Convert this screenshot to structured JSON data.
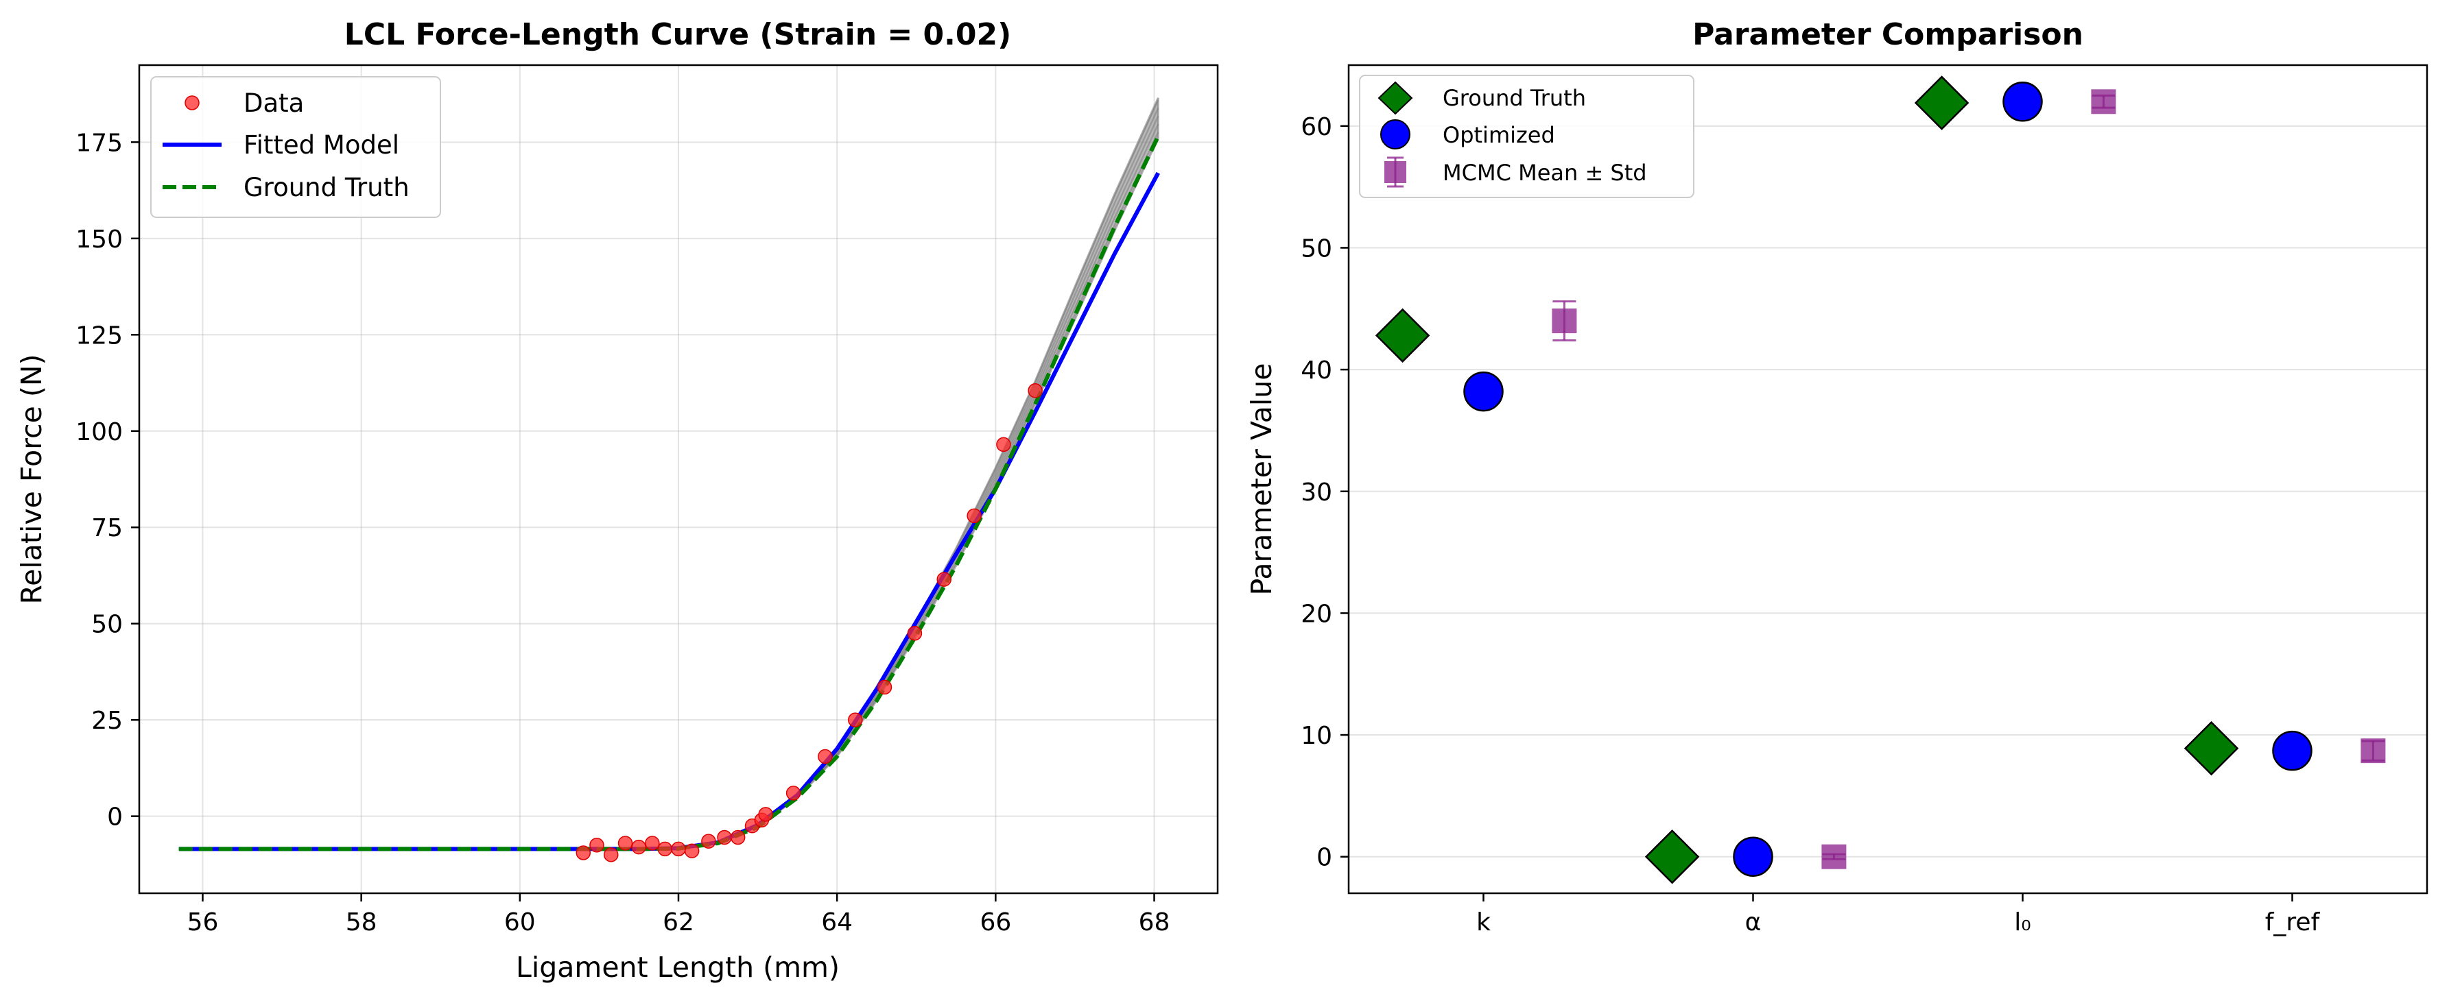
{
  "chart_data": [
    {
      "type": "line",
      "title": "LCL Force-Length Curve (Strain = 0.02)",
      "xlabel": "Ligament Length (mm)",
      "ylabel": "Relative Force (N)",
      "xlim": [
        55.2,
        68.8
      ],
      "ylim": [
        -20,
        195
      ],
      "xticks": [
        56,
        58,
        60,
        62,
        64,
        66,
        68
      ],
      "yticks": [
        0,
        25,
        50,
        75,
        100,
        125,
        150,
        175
      ],
      "grid": true,
      "legend_position": "upper-left",
      "legend": [
        "Data",
        "Fitted Model",
        "Ground Truth"
      ],
      "colors": {
        "data": "#ff2a2a",
        "fitted": "#0000ff",
        "ground_truth": "#008000",
        "mcmc": "#808080"
      },
      "series": [
        {
          "name": "Data",
          "kind": "scatter",
          "x": [
            60.8,
            60.97,
            61.15,
            61.33,
            61.5,
            61.67,
            61.83,
            62.0,
            62.17,
            62.38,
            62.58,
            62.75,
            62.93,
            63.05,
            63.1,
            63.45,
            63.85,
            64.23,
            64.6,
            64.98,
            65.35,
            65.73,
            66.1,
            66.5
          ],
          "y": [
            -9.5,
            -7.5,
            -10,
            -7,
            -8,
            -7,
            -8.5,
            -8.5,
            -9,
            -6.5,
            -5.5,
            -5.5,
            -2.5,
            -1,
            0.5,
            6,
            15.5,
            25,
            33.5,
            47.5,
            61.5,
            78,
            96.5,
            110.5
          ]
        },
        {
          "name": "Fitted Model",
          "kind": "line",
          "x": [
            55.7,
            61.5,
            62.0,
            62.5,
            63.0,
            63.5,
            64.0,
            64.5,
            65.0,
            65.5,
            66.0,
            66.5,
            67.0,
            67.5,
            68.05
          ],
          "y": [
            -8.5,
            -8.5,
            -8.3,
            -6.8,
            -2.3,
            5.5,
            17.5,
            33.0,
            50.5,
            68.0,
            85.0,
            105.0,
            125.5,
            146.0,
            167.0
          ]
        },
        {
          "name": "Ground Truth",
          "kind": "line",
          "x": [
            55.7,
            61.5,
            62.0,
            62.5,
            63.0,
            63.5,
            64.0,
            64.5,
            65.0,
            65.5,
            66.0,
            66.5,
            67.0,
            67.5,
            68.05
          ],
          "y": [
            -8.5,
            -8.5,
            -8.4,
            -7.0,
            -2.8,
            4.8,
            15.5,
            30.0,
            47.0,
            65.0,
            85.0,
            107.0,
            130.0,
            153.0,
            176.5
          ]
        },
        {
          "name": "",
          "kind": "mcmc-band",
          "x": [
            55.7,
            61.5,
            62.0,
            62.5,
            63.0,
            63.5,
            64.0,
            64.5,
            65.0,
            65.5,
            66.0,
            66.5,
            67.0,
            67.5,
            68.05
          ],
          "y_low": [
            -8.5,
            -8.5,
            -8.4,
            -7.0,
            -2.8,
            4.8,
            15.5,
            30.0,
            47.0,
            65.0,
            85.0,
            107.0,
            129.0,
            152.0,
            176.0
          ],
          "y_high": [
            -8.5,
            -8.5,
            -8.4,
            -7.0,
            -2.5,
            5.5,
            17.0,
            32.5,
            50.5,
            69.5,
            90.5,
            113.0,
            137.5,
            161.5,
            186.5
          ]
        }
      ]
    },
    {
      "type": "scatter",
      "title": "Parameter Comparison",
      "xlabel": "",
      "ylabel": "Parameter Value",
      "categories": [
        "k",
        "α",
        "l₀",
        "f_ref"
      ],
      "ylim": [
        -3,
        65
      ],
      "yticks": [
        0,
        10,
        20,
        30,
        40,
        50,
        60
      ],
      "grid": "y-only",
      "legend_position": "upper-left",
      "legend": [
        "Ground Truth",
        "Optimized",
        "MCMC Mean ± Std"
      ],
      "colors": {
        "ground_truth": "#007a00",
        "optimized": "#0000ff",
        "mcmc": "#8b1f8b"
      },
      "series": [
        {
          "name": "Ground Truth",
          "marker": "diamond",
          "offset": -0.3,
          "values": [
            42.8,
            0.0,
            61.9,
            8.9
          ]
        },
        {
          "name": "Optimized",
          "marker": "circle",
          "offset": 0.0,
          "values": [
            38.2,
            0.0,
            62.0,
            8.7
          ]
        },
        {
          "name": "MCMC Mean ± Std",
          "marker": "square",
          "offset": 0.3,
          "values": [
            44.0,
            0.0,
            62.0,
            8.7
          ],
          "std": [
            1.6,
            0.2,
            0.5,
            0.8
          ]
        }
      ]
    }
  ]
}
